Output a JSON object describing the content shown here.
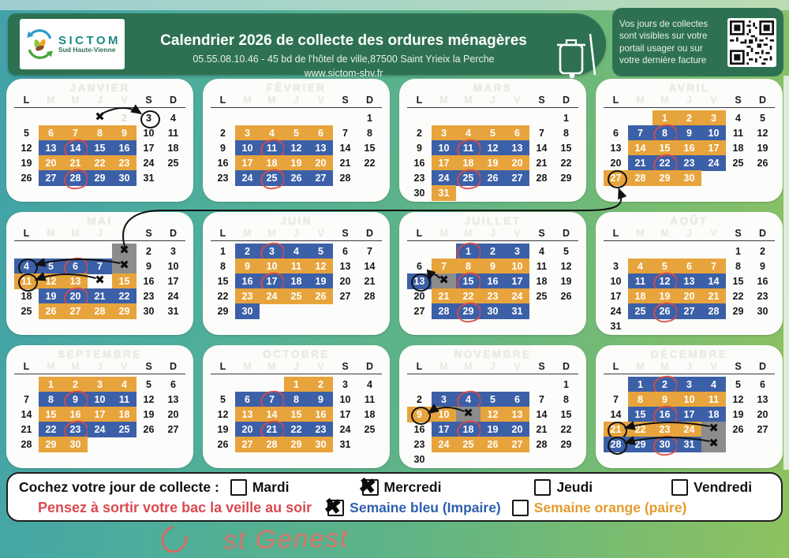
{
  "header": {
    "logo_title": "SICTOM",
    "logo_subtitle": "Sud Haute-Vienne",
    "title": "Calendrier 2026 de collecte des ordures ménagères",
    "subtitle": "05.55.08.10.46 - 45 bd de l'hôtel de ville,87500 Saint Yrieix la Perche",
    "website": "www.sictom-shv.fr"
  },
  "info_box": {
    "text": "Vos jours de collectes sont visibles sur votre portail usager ou sur votre dernière facture"
  },
  "calendar": {
    "day_headers": [
      "L",
      "M",
      "M",
      "J",
      "V",
      "S",
      "D"
    ],
    "colors": {
      "orange": "#E8A43C",
      "blue": "#3C60A8",
      "holiday_gray": "#8C8C8C",
      "red_mark": "#DC4A41"
    },
    "cell_format": "day:color(o=orange,b=blue,g=gray,-=none):marks(r=red circle,k=black circle,x=black X,f=faint)",
    "months": [
      {
        "name": "JANVIER",
        "weeks": [
          [
            "",
            "",
            "",
            "1:-:x",
            "2:-:f",
            "3:-:k",
            "4"
          ],
          [
            "5",
            "6:o",
            "7:o",
            "8:o",
            "9:o",
            "10",
            "11"
          ],
          [
            "12",
            "13:b",
            "14:b:r",
            "15:b",
            "16:b",
            "17",
            "18"
          ],
          [
            "19",
            "20:o",
            "21:o",
            "22:o",
            "23:o",
            "24",
            "25"
          ],
          [
            "26",
            "27:b",
            "28:b:r",
            "29:b",
            "30:b",
            "31",
            ""
          ]
        ],
        "arrows": [
          {
            "from": [
              0,
              3
            ],
            "to": [
              0,
              5
            ]
          }
        ]
      },
      {
        "name": "FÉVRIER",
        "weeks": [
          [
            "",
            "",
            "",
            "",
            "",
            "",
            "1"
          ],
          [
            "2",
            "3:o",
            "4:o",
            "5:o",
            "6:o",
            "7",
            "8"
          ],
          [
            "9",
            "10:b",
            "11:b:r",
            "12:b",
            "13:b",
            "14",
            "15"
          ],
          [
            "16",
            "17:o",
            "18:o",
            "19:o",
            "20:o",
            "21",
            "22"
          ],
          [
            "23",
            "24:b",
            "25:b:r",
            "26:b",
            "27:b",
            "28",
            ""
          ]
        ]
      },
      {
        "name": "MARS",
        "weeks": [
          [
            "",
            "",
            "",
            "",
            "",
            "",
            "1"
          ],
          [
            "2",
            "3:o",
            "4:o",
            "5:o",
            "6:o",
            "7",
            "8"
          ],
          [
            "9",
            "10:b",
            "11:b:r",
            "12:b",
            "13:b",
            "14",
            "15"
          ],
          [
            "16",
            "17:o",
            "18:o",
            "19:o",
            "20:o",
            "21",
            "22"
          ],
          [
            "23",
            "24:b",
            "25:b:r",
            "26:b",
            "27:b",
            "28",
            "29"
          ],
          [
            "30",
            "31:o",
            "",
            "",
            "",
            "",
            ""
          ]
        ]
      },
      {
        "name": "AVRIL",
        "weeks": [
          [
            "",
            "",
            "1:o",
            "2:o",
            "3:o",
            "4",
            "5"
          ],
          [
            "6",
            "7:b",
            "8:b:r",
            "9:b",
            "10:b",
            "11",
            "12"
          ],
          [
            "13",
            "14:o",
            "15:o",
            "16:o",
            "17:o",
            "18",
            "19"
          ],
          [
            "20",
            "21:b",
            "22:b:r",
            "23:b",
            "24:b",
            "25",
            "26"
          ],
          [
            "27:o:k",
            "28:o",
            "29:o",
            "30:o",
            "",
            "",
            ""
          ]
        ]
      },
      {
        "name": "MAI",
        "weeks": [
          [
            "",
            "",
            "",
            "",
            "1:g:x",
            "2",
            "3"
          ],
          [
            "4:b:k",
            "5:b",
            "6:b:r",
            "7:b",
            "8:g:x",
            "9",
            "10"
          ],
          [
            "11:o:k",
            "12:o",
            "13:o",
            "14:-:x",
            "15:o",
            "16",
            "17"
          ],
          [
            "18",
            "19:b",
            "20:b:r",
            "21:b",
            "22:b",
            "23",
            "24"
          ],
          [
            "25",
            "26:o",
            "27:o",
            "28:o",
            "29:o",
            "30",
            "31"
          ]
        ],
        "arrows": [
          {
            "from": [
              1,
              4
            ],
            "to": [
              1,
              0
            ]
          },
          {
            "from": [
              2,
              3
            ],
            "to": [
              2,
              0
            ]
          }
        ]
      },
      {
        "name": "JUIN",
        "weeks": [
          [
            "1",
            "2:b",
            "3:b:r",
            "4:b",
            "5:b",
            "6",
            "7"
          ],
          [
            "8",
            "9:o",
            "10:o",
            "11:o",
            "12:o",
            "13",
            "14"
          ],
          [
            "15",
            "16:b",
            "17:b:r",
            "18:b",
            "19:b",
            "20",
            "21"
          ],
          [
            "22",
            "23:o",
            "24:o",
            "25:o",
            "26:o",
            "27",
            "28"
          ],
          [
            "29",
            "30:b",
            "",
            "",
            "",
            "",
            ""
          ]
        ]
      },
      {
        "name": "JUILLET",
        "weeks": [
          [
            "",
            "",
            "1:b:r",
            "2:b",
            "3:b",
            "4",
            "5"
          ],
          [
            "6",
            "7:o",
            "8:o",
            "9:o",
            "10:o",
            "11",
            "12"
          ],
          [
            "13:b:k",
            "14:g:x",
            "15:b:r",
            "16:b",
            "17:b",
            "18",
            "19"
          ],
          [
            "20",
            "21:o",
            "22:o",
            "23:o",
            "24:o",
            "25",
            "26"
          ],
          [
            "27",
            "28:b",
            "29:b:r",
            "30:b",
            "31:b",
            "",
            ""
          ]
        ],
        "arrows": [
          {
            "from": [
              2,
              1
            ],
            "to": [
              2,
              0
            ]
          }
        ]
      },
      {
        "name": "AOÛT",
        "weeks": [
          [
            "",
            "",
            "",
            "",
            "",
            "1",
            "2"
          ],
          [
            "3",
            "4:o",
            "5:o",
            "6:o",
            "7:o",
            "8",
            "9"
          ],
          [
            "10",
            "11:b",
            "12:b:r",
            "13:b",
            "14:b",
            "15",
            "16"
          ],
          [
            "17",
            "18:o",
            "19:o",
            "20:o",
            "21:o",
            "22",
            "23"
          ],
          [
            "24",
            "25:b",
            "26:b:r",
            "27:b",
            "28:b",
            "29",
            "30"
          ],
          [
            "31",
            "",
            "",
            "",
            "",
            "",
            ""
          ]
        ]
      },
      {
        "name": "SEPTEMBRE",
        "weeks": [
          [
            "",
            "1:o",
            "2:o",
            "3:o",
            "4:o",
            "5",
            "6"
          ],
          [
            "7",
            "8:b",
            "9:b:r",
            "10:b",
            "11:b",
            "12",
            "13"
          ],
          [
            "14",
            "15:o",
            "16:o",
            "17:o",
            "18:o",
            "19",
            "20"
          ],
          [
            "21",
            "22:b",
            "23:b:r",
            "24:b",
            "25:b",
            "26",
            "27"
          ],
          [
            "28",
            "29:o",
            "30:o",
            "",
            "",
            "",
            ""
          ]
        ]
      },
      {
        "name": "OCTOBRE",
        "weeks": [
          [
            "",
            "",
            "",
            "1:o",
            "2:o",
            "3",
            "4"
          ],
          [
            "5",
            "6:b",
            "7:b:r",
            "8:b",
            "9:b",
            "10",
            "11"
          ],
          [
            "12",
            "13:o",
            "14:o",
            "15:o",
            "16:o",
            "17",
            "18"
          ],
          [
            "19",
            "20:b",
            "21:b:r",
            "22:b",
            "23:b",
            "24",
            "25"
          ],
          [
            "26",
            "27:o",
            "28:o",
            "29:o",
            "30:o",
            "31",
            ""
          ]
        ]
      },
      {
        "name": "NOVEMBRE",
        "weeks": [
          [
            "",
            "",
            "",
            "",
            "",
            "",
            "1"
          ],
          [
            "2",
            "3:b",
            "4:b:r",
            "5:b",
            "6:b",
            "7",
            "8"
          ],
          [
            "9:o:k",
            "10:o",
            "11:g:x",
            "12:o",
            "13:o",
            "14",
            "15"
          ],
          [
            "16",
            "17:b",
            "18:b:r",
            "19:b",
            "20:b",
            "21",
            "22"
          ],
          [
            "23",
            "24:o",
            "25:o",
            "26:o",
            "27:o",
            "28",
            "29"
          ],
          [
            "30",
            "",
            "",
            "",
            "",
            "",
            ""
          ]
        ],
        "arrows": [
          {
            "from": [
              2,
              2
            ],
            "to": [
              2,
              0
            ]
          }
        ]
      },
      {
        "name": "DÉCEMBRE",
        "weeks": [
          [
            "",
            "1:b",
            "2:b:r",
            "3:b",
            "4:b",
            "5",
            "6"
          ],
          [
            "7",
            "8:o",
            "9:o",
            "10:o",
            "11:o",
            "12",
            "13"
          ],
          [
            "14",
            "15:b",
            "16:b:r",
            "17:b",
            "18:b",
            "19",
            "20"
          ],
          [
            "21:o:k",
            "22:o",
            "23:o",
            "24:o",
            "25:g:x",
            "26",
            "27"
          ],
          [
            "28:b:k",
            "29:b",
            "30:b:r",
            "31:b",
            ":g:x",
            "",
            ""
          ]
        ],
        "arrows": [
          {
            "from": [
              3,
              4
            ],
            "to": [
              3,
              0
            ]
          },
          {
            "from": [
              4,
              4
            ],
            "to": [
              4,
              0
            ]
          }
        ]
      }
    ],
    "cross_month_arrow": {
      "from": "1 mai (X)",
      "to": "27 avril (cerclé)"
    }
  },
  "legend": {
    "heading": "Cochez votre jour de collecte :",
    "days": [
      {
        "label": "Mardi",
        "checked": false
      },
      {
        "label": "Mercredi",
        "checked": true
      },
      {
        "label": "Jeudi",
        "checked": false
      },
      {
        "label": "Vendredi",
        "checked": false
      }
    ],
    "reminder": "Pensez à sortir votre bac la veille au soir",
    "weeks": [
      {
        "label": "Semaine bleu (Impaire)",
        "checked": true,
        "color": "#2f5fae"
      },
      {
        "label": "Semaine orange (paire)",
        "checked": false,
        "color": "#e39b2d"
      }
    ]
  },
  "handwriting": {
    "text": "st Genest"
  }
}
